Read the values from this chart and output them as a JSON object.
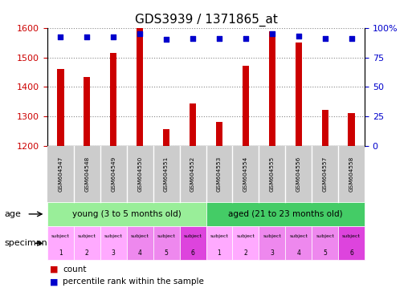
{
  "title": "GDS3939 / 1371865_at",
  "samples": [
    "GSM604547",
    "GSM604548",
    "GSM604549",
    "GSM604550",
    "GSM604551",
    "GSM604552",
    "GSM604553",
    "GSM604554",
    "GSM604555",
    "GSM604556",
    "GSM604557",
    "GSM604558"
  ],
  "counts": [
    1460,
    1435,
    1515,
    1600,
    1258,
    1345,
    1283,
    1472,
    1587,
    1550,
    1323,
    1313
  ],
  "percentiles": [
    92,
    92,
    92,
    95,
    90,
    91,
    91,
    91,
    95,
    93,
    91,
    91
  ],
  "ylim_left": [
    1200,
    1600
  ],
  "ylim_right": [
    0,
    100
  ],
  "yticks_left": [
    1200,
    1300,
    1400,
    1500,
    1600
  ],
  "yticks_right": [
    0,
    25,
    50,
    75,
    100
  ],
  "bar_color": "#cc0000",
  "scatter_color": "#0000cc",
  "age_groups": [
    {
      "label": "young (3 to 5 months old)",
      "start": 0,
      "end": 6,
      "color": "#99ee99"
    },
    {
      "label": "aged (21 to 23 months old)",
      "start": 6,
      "end": 12,
      "color": "#44cc66"
    }
  ],
  "specimen_colors": [
    "#ffaaff",
    "#ffaaff",
    "#ffaaff",
    "#ee88ee",
    "#ee88ee",
    "#dd44dd",
    "#ffaaff",
    "#ffaaff",
    "#ee88ee",
    "#ee88ee",
    "#ee88ee",
    "#dd44dd"
  ],
  "xlabel_color": "#cc0000",
  "right_axis_color": "#0000cc",
  "grid_color": "#888888",
  "background_color": "#ffffff",
  "title_fontsize": 11,
  "tick_fontsize": 8,
  "bar_width": 0.25
}
